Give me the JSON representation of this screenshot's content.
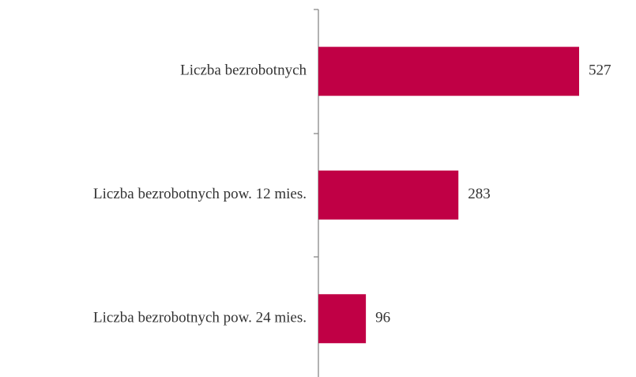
{
  "chart_data": {
    "type": "bar",
    "orientation": "horizontal",
    "categories": [
      "Liczba bezrobotnych",
      "Liczba bezrobotnych pow. 12 mies.",
      "Liczba bezrobotnych pow. 24 mies."
    ],
    "values": [
      527,
      283,
      96
    ],
    "color": "#c00045"
  }
}
